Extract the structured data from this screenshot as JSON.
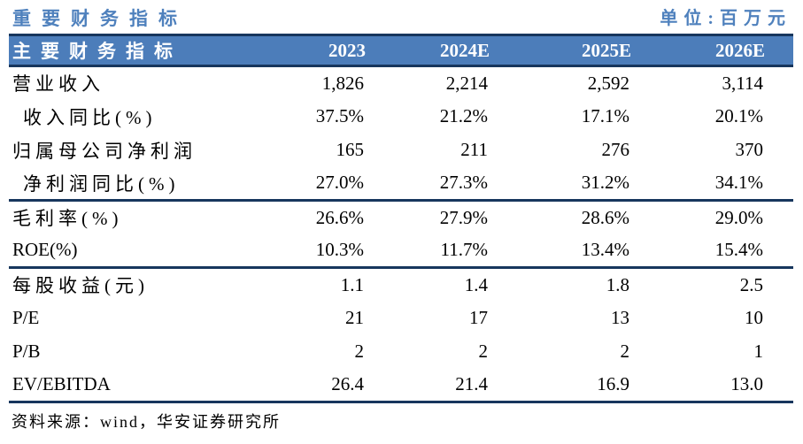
{
  "page": {
    "title": "重要财务指标",
    "unit_label": "单位:百万元"
  },
  "colors": {
    "accent_blue": "#4F81BD",
    "header_bg": "#4C7DBA",
    "border_navy": "#17365D",
    "header_text": "#FFFFFF",
    "body_text": "#000000"
  },
  "table": {
    "columns": [
      "主要财务指标",
      "2023",
      "2024E",
      "2025E",
      "2026E"
    ],
    "sections": [
      {
        "rows": [
          {
            "label": "营业收入",
            "indent": false,
            "values": [
              "1,826",
              "2,214",
              "2,592",
              "3,114"
            ]
          },
          {
            "label": "收入同比(%)",
            "indent": true,
            "values": [
              "37.5%",
              "21.2%",
              "17.1%",
              "20.1%"
            ]
          },
          {
            "label": "归属母公司净利润",
            "indent": false,
            "values": [
              "165",
              "211",
              "276",
              "370"
            ]
          },
          {
            "label": "净利润同比(%)",
            "indent": true,
            "values": [
              "27.0%",
              "27.3%",
              "31.2%",
              "34.1%"
            ]
          }
        ]
      },
      {
        "rows": [
          {
            "label": "毛利率(%)",
            "indent": false,
            "values": [
              "26.6%",
              "27.9%",
              "28.6%",
              "29.0%"
            ]
          },
          {
            "label": "ROE(%)",
            "indent": false,
            "values": [
              "10.3%",
              "11.7%",
              "13.4%",
              "15.4%"
            ]
          }
        ]
      },
      {
        "rows": [
          {
            "label": "每股收益(元)",
            "indent": false,
            "values": [
              "1.1",
              "1.4",
              "1.8",
              "2.5"
            ]
          },
          {
            "label": "P/E",
            "indent": false,
            "values": [
              "21",
              "17",
              "13",
              "10"
            ]
          },
          {
            "label": "P/B",
            "indent": false,
            "values": [
              "2",
              "2",
              "2",
              "1"
            ]
          },
          {
            "label": "EV/EBITDA",
            "indent": false,
            "values": [
              "26.4",
              "21.4",
              "16.9",
              "13.0"
            ]
          }
        ]
      }
    ]
  },
  "footer": {
    "source": "资料来源：wind，华安证券研究所"
  }
}
